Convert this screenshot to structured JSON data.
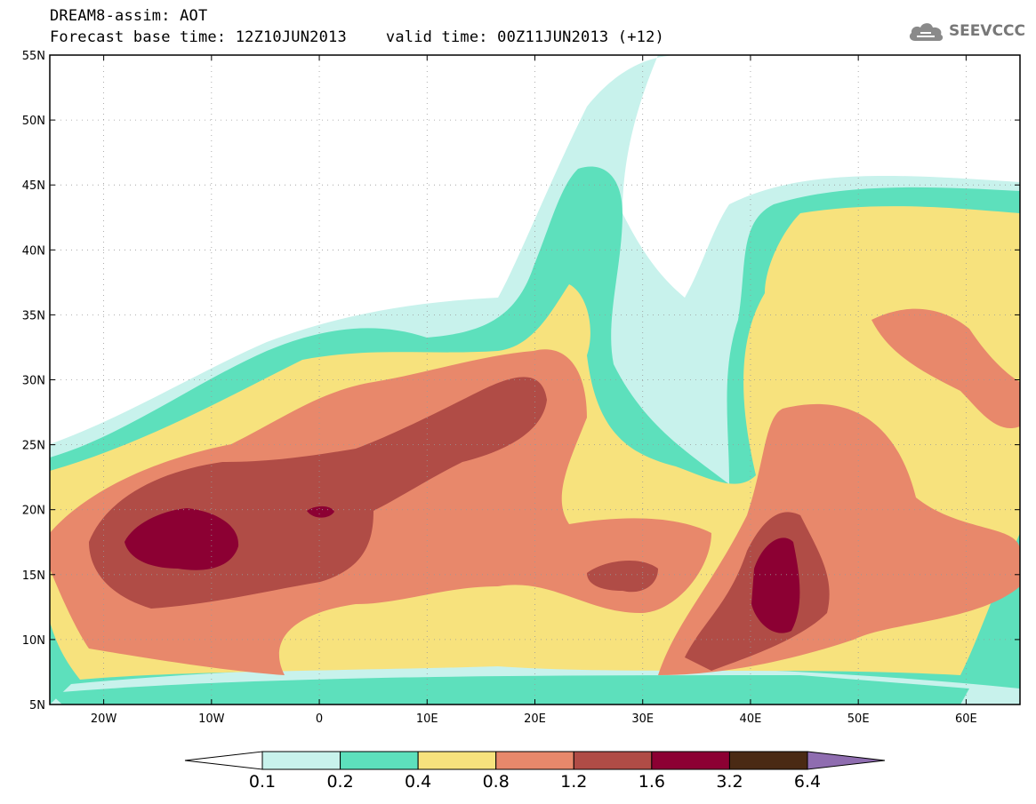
{
  "header": {
    "title": "DREAM8-assim: AOT",
    "base_time": "Forecast base time: 12Z10JUN2013",
    "valid_time": "valid time: 00Z11JUN2013 (+12)",
    "logo_text": "SEEVCCC",
    "logo_icon": "cloud-icon"
  },
  "map": {
    "lat_labels": [
      "55N",
      "50N",
      "45N",
      "40N",
      "35N",
      "30N",
      "25N",
      "20N",
      "15N",
      "10N",
      "5N"
    ],
    "lon_labels": [
      "20W",
      "10W",
      "0",
      "10E",
      "20E",
      "30E",
      "40E",
      "50E",
      "60E"
    ],
    "lat_range": [
      5,
      55
    ],
    "lon_range": [
      -25,
      65
    ]
  },
  "legend": {
    "levels": [
      "0.1",
      "0.2",
      "0.4",
      "0.8",
      "1.2",
      "1.6",
      "3.2",
      "6.4"
    ],
    "colors": [
      "#ffffff",
      "#c8f2ec",
      "#5de0bc",
      "#f7e27d",
      "#e8886b",
      "#b04c46",
      "#8c0033",
      "#4a2a14",
      "#8f6db0"
    ]
  }
}
